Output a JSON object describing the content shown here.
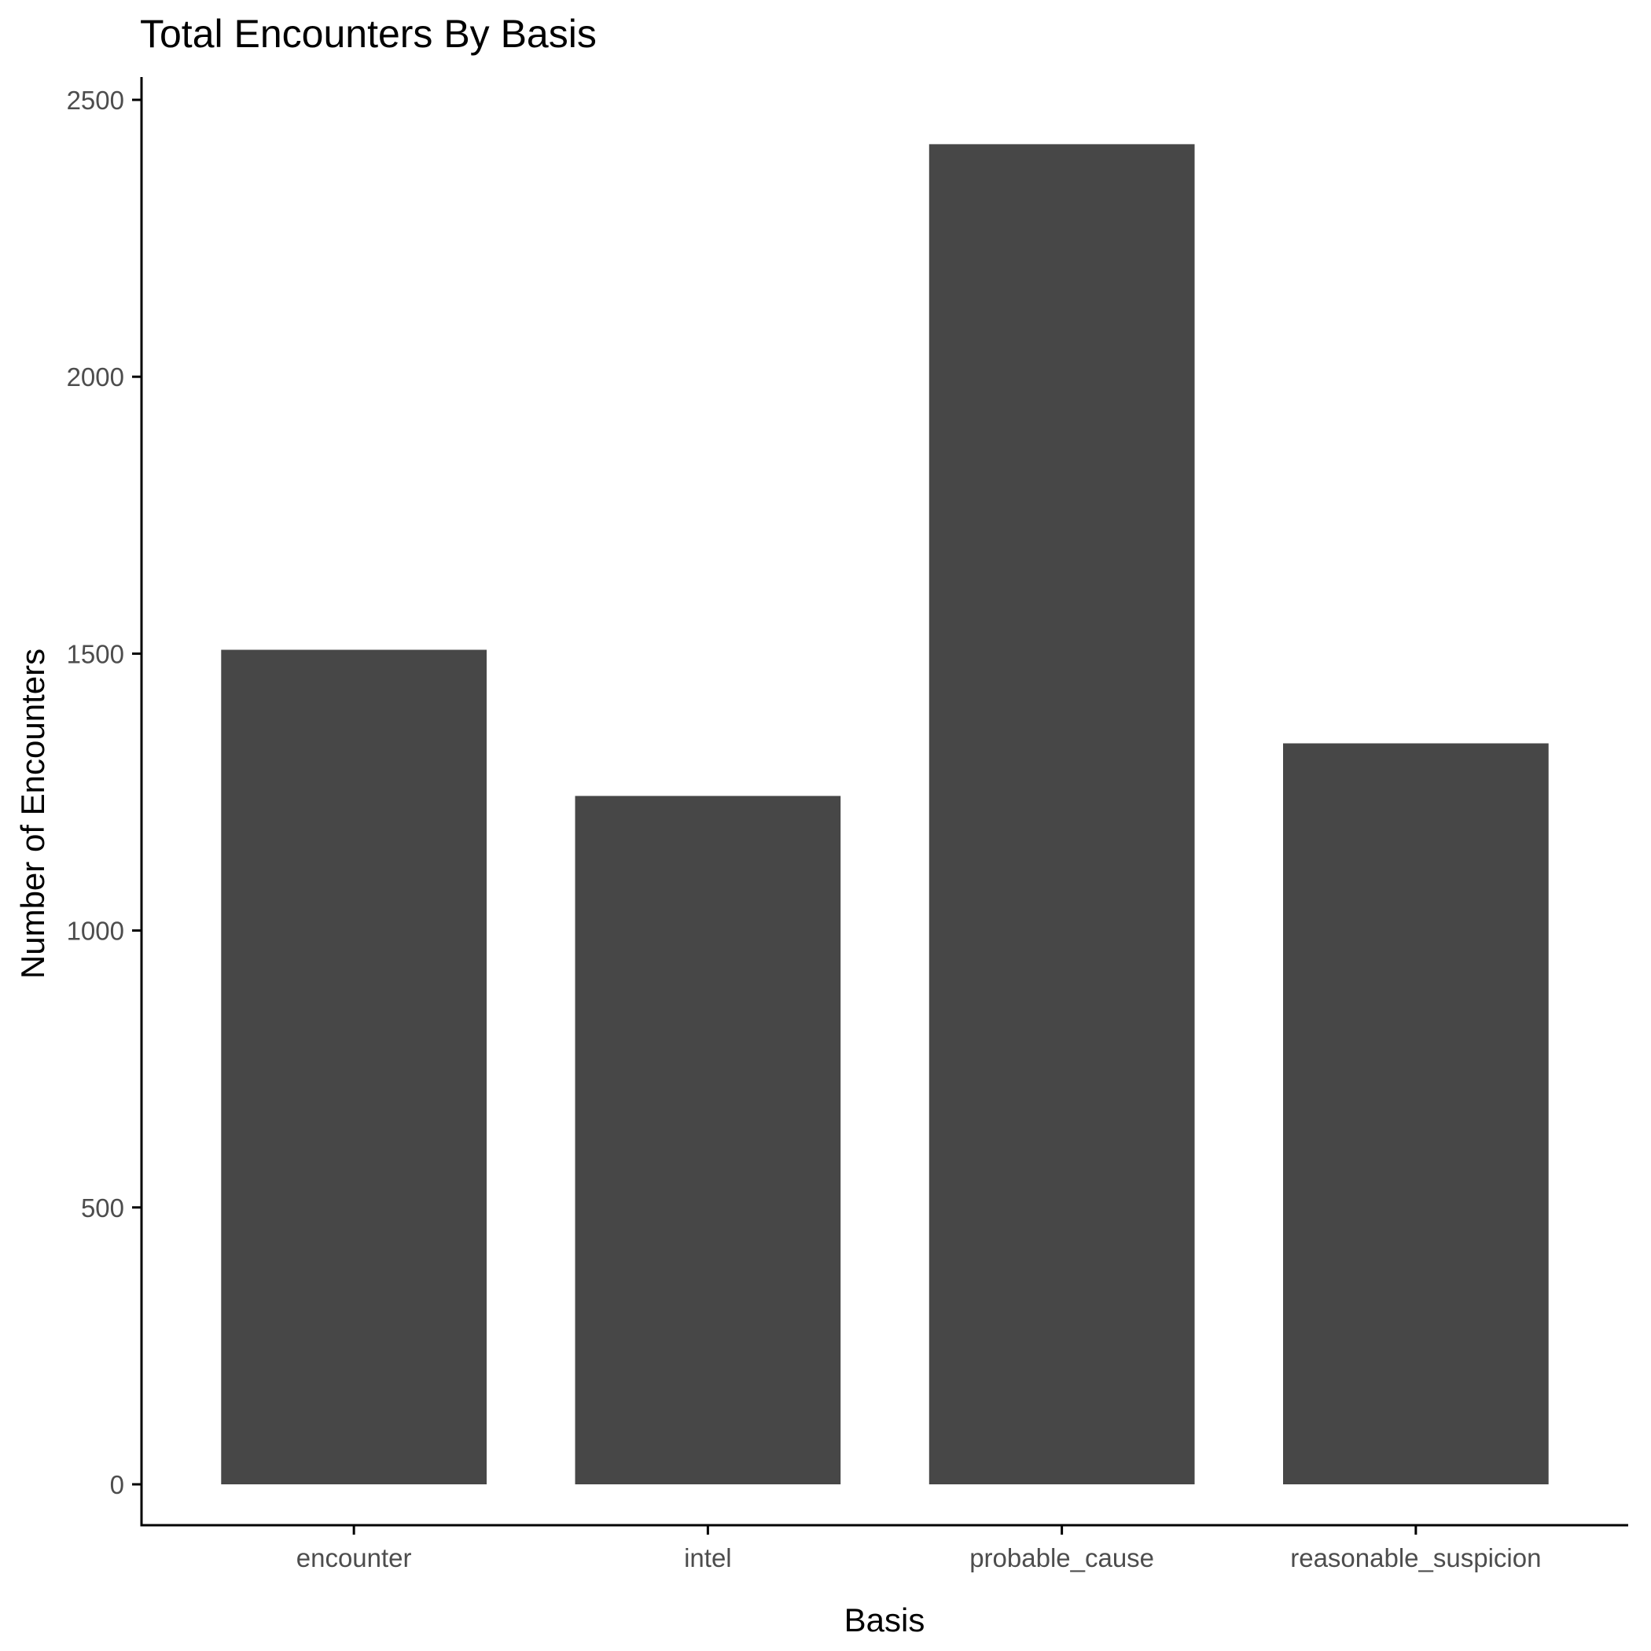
{
  "chart_data": {
    "type": "bar",
    "title": "Total Encounters By Basis",
    "xlabel": "Basis",
    "ylabel": "Number of Encounters",
    "categories": [
      "encounter",
      "intel",
      "probable_cause",
      "reasonable_suspicion"
    ],
    "values": [
      1507,
      1243,
      2420,
      1338
    ],
    "ylim": [
      -120,
      2540
    ],
    "yticks": [
      0,
      500,
      1000,
      1500,
      2000,
      2500
    ],
    "grid": false,
    "legend": "none",
    "bar_color": "#474747",
    "axis_color": "#000000"
  }
}
